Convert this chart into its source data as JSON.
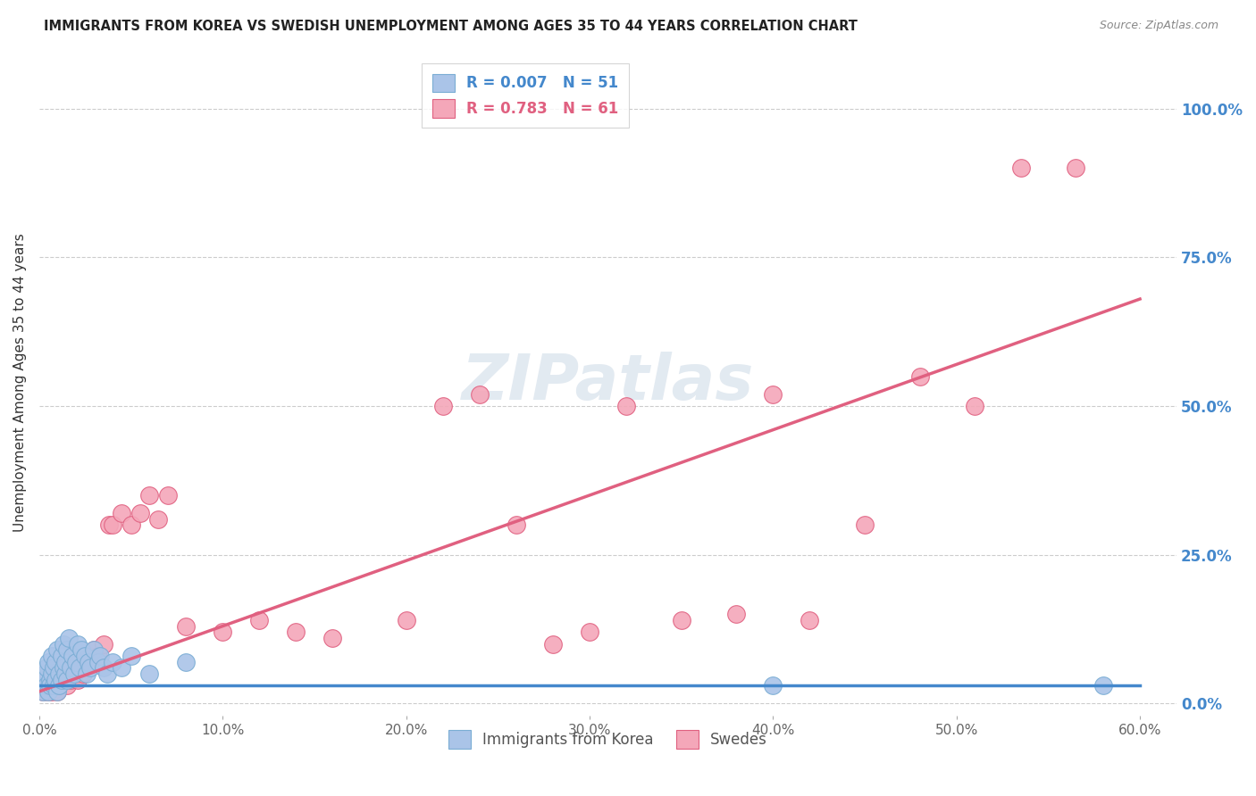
{
  "title": "IMMIGRANTS FROM KOREA VS SWEDISH UNEMPLOYMENT AMONG AGES 35 TO 44 YEARS CORRELATION CHART",
  "source": "Source: ZipAtlas.com",
  "ylabel": "Unemployment Among Ages 35 to 44 years",
  "xlim": [
    0.0,
    0.62
  ],
  "ylim": [
    -0.02,
    1.1
  ],
  "xticks": [
    0.0,
    0.1,
    0.2,
    0.3,
    0.4,
    0.5,
    0.6
  ],
  "xticklabels": [
    "0.0%",
    "10.0%",
    "20.0%",
    "30.0%",
    "40.0%",
    "50.0%",
    "60.0%"
  ],
  "yticks_right": [
    0.0,
    0.25,
    0.5,
    0.75,
    1.0
  ],
  "yticklabels_right": [
    "0.0%",
    "25.0%",
    "50.0%",
    "75.0%",
    "100.0%"
  ],
  "grid_color": "#cccccc",
  "background_color": "#ffffff",
  "korea_color": "#aac4e8",
  "sweden_color": "#f4a7b9",
  "korea_edge_color": "#7aadd4",
  "sweden_edge_color": "#e06080",
  "trend_korea_color": "#4488cc",
  "trend_sweden_color": "#e06080",
  "legend_korea_label": "R = 0.007   N = 51",
  "legend_sweden_label": "R = 0.783   N = 61",
  "korea_trend_slope": 0.0,
  "korea_trend_intercept": 0.03,
  "sweden_trend_slope": 1.1,
  "sweden_trend_intercept": 0.02,
  "korea_scatter_x": [
    0.001,
    0.002,
    0.003,
    0.004,
    0.004,
    0.005,
    0.005,
    0.006,
    0.006,
    0.007,
    0.007,
    0.008,
    0.008,
    0.009,
    0.009,
    0.01,
    0.01,
    0.011,
    0.011,
    0.012,
    0.012,
    0.013,
    0.013,
    0.014,
    0.014,
    0.015,
    0.015,
    0.016,
    0.017,
    0.018,
    0.019,
    0.02,
    0.021,
    0.022,
    0.023,
    0.025,
    0.026,
    0.027,
    0.028,
    0.03,
    0.032,
    0.033,
    0.035,
    0.037,
    0.04,
    0.045,
    0.05,
    0.06,
    0.08,
    0.4,
    0.58
  ],
  "korea_scatter_y": [
    0.04,
    0.02,
    0.05,
    0.03,
    0.06,
    0.02,
    0.07,
    0.04,
    0.03,
    0.05,
    0.08,
    0.03,
    0.06,
    0.04,
    0.07,
    0.02,
    0.09,
    0.05,
    0.03,
    0.08,
    0.04,
    0.06,
    0.1,
    0.05,
    0.07,
    0.09,
    0.04,
    0.11,
    0.06,
    0.08,
    0.05,
    0.07,
    0.1,
    0.06,
    0.09,
    0.08,
    0.05,
    0.07,
    0.06,
    0.09,
    0.07,
    0.08,
    0.06,
    0.05,
    0.07,
    0.06,
    0.08,
    0.05,
    0.07,
    0.03,
    0.03
  ],
  "sweden_scatter_x": [
    0.001,
    0.002,
    0.003,
    0.004,
    0.005,
    0.005,
    0.006,
    0.007,
    0.007,
    0.008,
    0.008,
    0.009,
    0.01,
    0.01,
    0.011,
    0.012,
    0.013,
    0.014,
    0.015,
    0.016,
    0.017,
    0.018,
    0.019,
    0.02,
    0.021,
    0.022,
    0.024,
    0.026,
    0.028,
    0.03,
    0.032,
    0.035,
    0.038,
    0.04,
    0.045,
    0.05,
    0.055,
    0.06,
    0.065,
    0.07,
    0.08,
    0.1,
    0.12,
    0.14,
    0.16,
    0.2,
    0.22,
    0.24,
    0.26,
    0.28,
    0.3,
    0.32,
    0.35,
    0.38,
    0.4,
    0.42,
    0.45,
    0.48,
    0.51,
    0.535,
    0.565
  ],
  "sweden_scatter_y": [
    0.03,
    0.02,
    0.04,
    0.03,
    0.02,
    0.05,
    0.03,
    0.04,
    0.02,
    0.05,
    0.03,
    0.06,
    0.02,
    0.04,
    0.03,
    0.05,
    0.04,
    0.06,
    0.03,
    0.05,
    0.04,
    0.06,
    0.05,
    0.07,
    0.04,
    0.06,
    0.05,
    0.07,
    0.08,
    0.09,
    0.08,
    0.1,
    0.3,
    0.3,
    0.32,
    0.3,
    0.32,
    0.35,
    0.31,
    0.35,
    0.13,
    0.12,
    0.14,
    0.12,
    0.11,
    0.14,
    0.5,
    0.52,
    0.3,
    0.1,
    0.12,
    0.5,
    0.14,
    0.15,
    0.52,
    0.14,
    0.3,
    0.55,
    0.5,
    0.9,
    0.9
  ]
}
